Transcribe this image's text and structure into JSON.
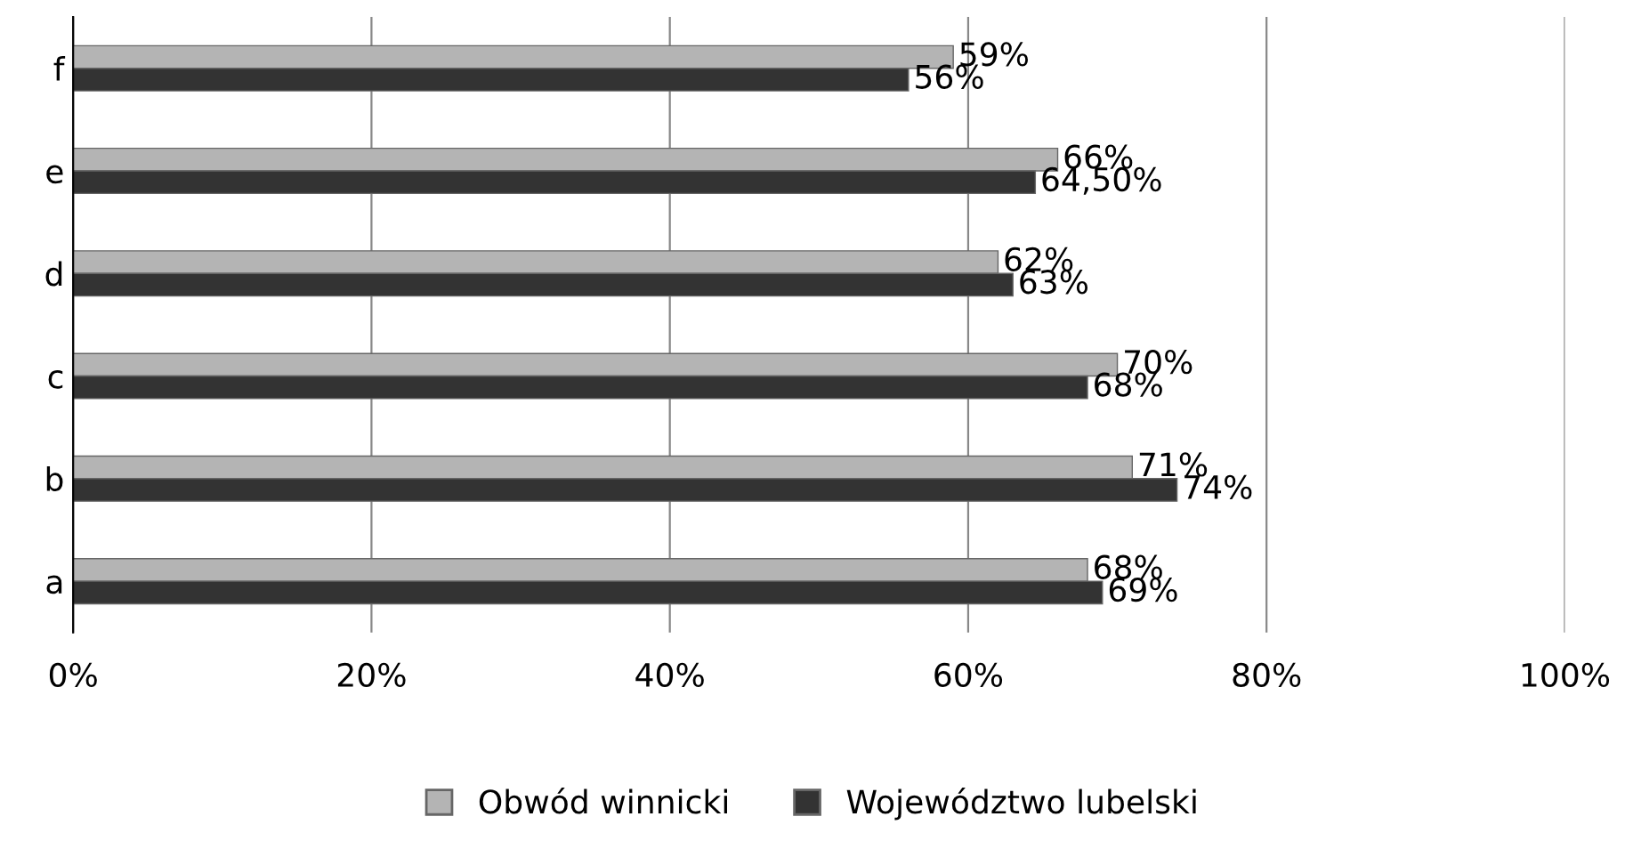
{
  "chart_data": {
    "type": "bar",
    "orientation": "horizontal",
    "categories": [
      "f",
      "e",
      "d",
      "c",
      "b",
      "a"
    ],
    "series": [
      {
        "name": "Obwód winnicki",
        "color": "#b4b4b4",
        "values": [
          59,
          66,
          62,
          70,
          71,
          68
        ],
        "value_labels": [
          "59%",
          "66%",
          "62%",
          "70%",
          "71%",
          "68%"
        ]
      },
      {
        "name": "Województwo lubelski",
        "color": "#333333",
        "values": [
          56,
          64.5,
          63,
          68,
          74,
          69
        ],
        "value_labels": [
          "56%",
          "64,50%",
          "63%",
          "68%",
          "74%",
          "69%"
        ]
      }
    ],
    "xlim": [
      0,
      100
    ],
    "xticks": [
      {
        "value": 0,
        "label": "0%"
      },
      {
        "value": 20,
        "label": "20%"
      },
      {
        "value": 40,
        "label": "40%"
      },
      {
        "value": 60,
        "label": "60%"
      },
      {
        "value": 80,
        "label": "80%"
      },
      {
        "value": 100,
        "label": "100%"
      }
    ],
    "grid": "x",
    "legend": "bottom"
  }
}
